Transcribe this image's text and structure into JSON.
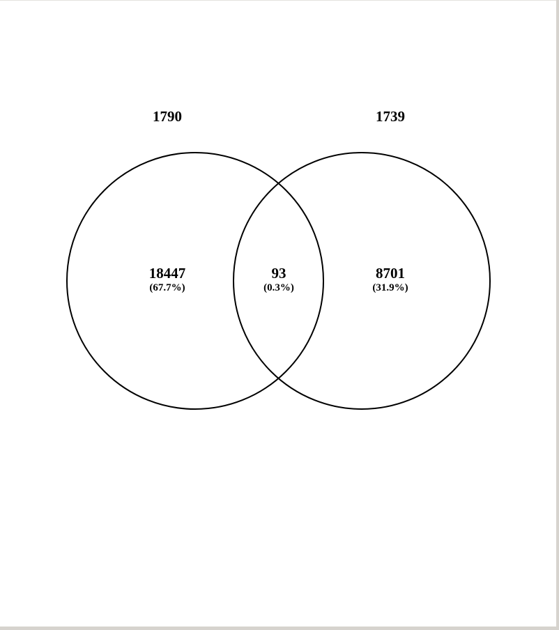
{
  "venn": {
    "set_a": {
      "label": "1790"
    },
    "set_b": {
      "label": "1739"
    },
    "only_a": {
      "count": "18447",
      "percent": "(67.7%)"
    },
    "both": {
      "count": "93",
      "percent": "(0.3%)"
    },
    "only_b": {
      "count": "8701",
      "percent": "(31.9%)"
    },
    "outline_color": "#000000",
    "background_color": "#ffffff"
  }
}
